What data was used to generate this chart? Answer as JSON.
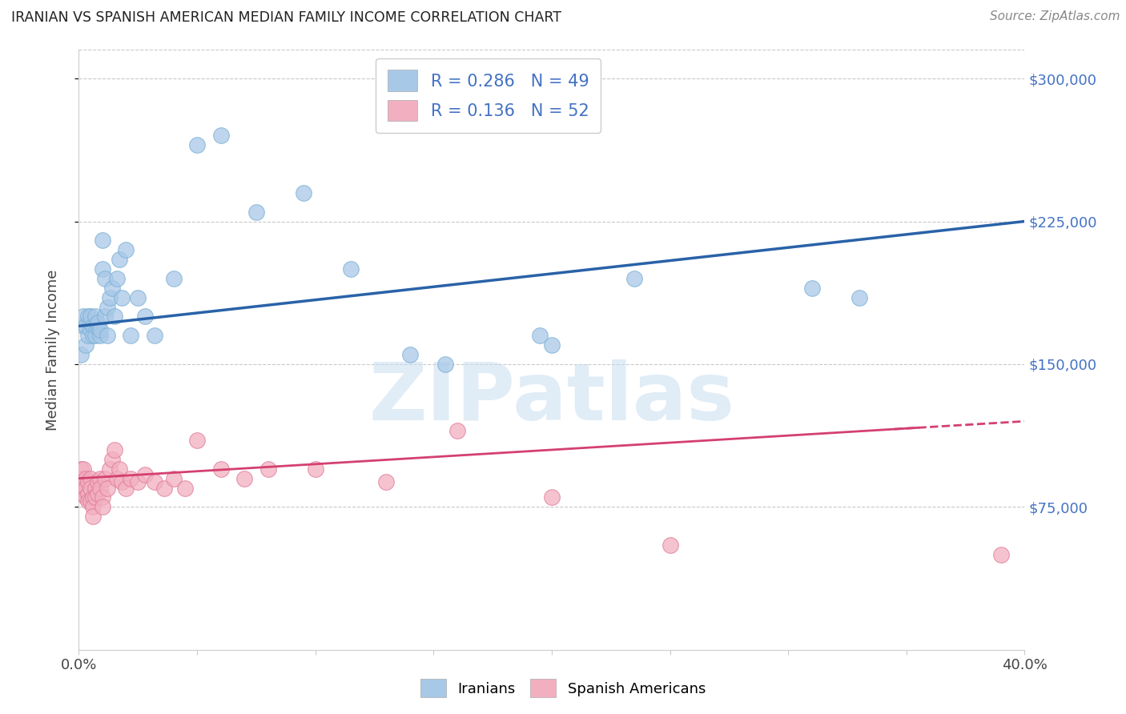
{
  "title": "IRANIAN VS SPANISH AMERICAN MEDIAN FAMILY INCOME CORRELATION CHART",
  "source": "Source: ZipAtlas.com",
  "ylabel": "Median Family Income",
  "xlim": [
    0.0,
    0.4
  ],
  "ylim": [
    0,
    315000
  ],
  "yticks": [
    75000,
    150000,
    225000,
    300000
  ],
  "xticks": [
    0.0,
    0.05,
    0.1,
    0.15,
    0.2,
    0.25,
    0.3,
    0.35,
    0.4
  ],
  "iranian_color": "#a8c8e8",
  "iranian_edge": "#7aafd4",
  "spanish_color": "#f2afc0",
  "spanish_edge": "#e07a9a",
  "trend_iranian_color": "#2962a8",
  "trend_spanish_color": "#d44070",
  "R_iranian": 0.286,
  "N_iranian": 49,
  "R_spanish": 0.136,
  "N_spanish": 52,
  "legend_label_1": "Iranians",
  "legend_label_2": "Spanish Americans",
  "watermark": "ZIPatlas",
  "axis_color": "#4472c4",
  "iranians_x": [
    0.001,
    0.002,
    0.002,
    0.003,
    0.003,
    0.004,
    0.004,
    0.005,
    0.005,
    0.005,
    0.006,
    0.006,
    0.007,
    0.007,
    0.007,
    0.008,
    0.008,
    0.009,
    0.009,
    0.01,
    0.01,
    0.011,
    0.011,
    0.012,
    0.012,
    0.013,
    0.014,
    0.015,
    0.016,
    0.017,
    0.018,
    0.02,
    0.022,
    0.025,
    0.028,
    0.032,
    0.04,
    0.05,
    0.06,
    0.075,
    0.095,
    0.115,
    0.14,
    0.155,
    0.195,
    0.2,
    0.235,
    0.31,
    0.33
  ],
  "iranians_y": [
    155000,
    170000,
    175000,
    160000,
    170000,
    165000,
    175000,
    168000,
    172000,
    175000,
    165000,
    170000,
    165000,
    170000,
    175000,
    170000,
    172000,
    165000,
    168000,
    200000,
    215000,
    195000,
    175000,
    180000,
    165000,
    185000,
    190000,
    175000,
    195000,
    205000,
    185000,
    210000,
    165000,
    185000,
    175000,
    165000,
    195000,
    265000,
    270000,
    230000,
    240000,
    200000,
    155000,
    150000,
    165000,
    160000,
    195000,
    190000,
    185000
  ],
  "spanish_x": [
    0.001,
    0.001,
    0.001,
    0.002,
    0.002,
    0.002,
    0.003,
    0.003,
    0.003,
    0.004,
    0.004,
    0.004,
    0.005,
    0.005,
    0.005,
    0.006,
    0.006,
    0.006,
    0.007,
    0.007,
    0.008,
    0.008,
    0.009,
    0.009,
    0.01,
    0.01,
    0.011,
    0.012,
    0.013,
    0.014,
    0.015,
    0.016,
    0.017,
    0.018,
    0.02,
    0.022,
    0.025,
    0.028,
    0.032,
    0.036,
    0.04,
    0.045,
    0.05,
    0.06,
    0.07,
    0.08,
    0.1,
    0.13,
    0.16,
    0.2,
    0.25,
    0.39
  ],
  "spanish_y": [
    95000,
    90000,
    85000,
    95000,
    88000,
    82000,
    90000,
    85000,
    80000,
    88000,
    82000,
    78000,
    90000,
    85000,
    78000,
    80000,
    75000,
    70000,
    85000,
    80000,
    88000,
    82000,
    90000,
    85000,
    80000,
    75000,
    90000,
    85000,
    95000,
    100000,
    105000,
    90000,
    95000,
    88000,
    85000,
    90000,
    88000,
    92000,
    88000,
    85000,
    90000,
    85000,
    110000,
    95000,
    90000,
    95000,
    95000,
    88000,
    115000,
    80000,
    55000,
    50000
  ]
}
